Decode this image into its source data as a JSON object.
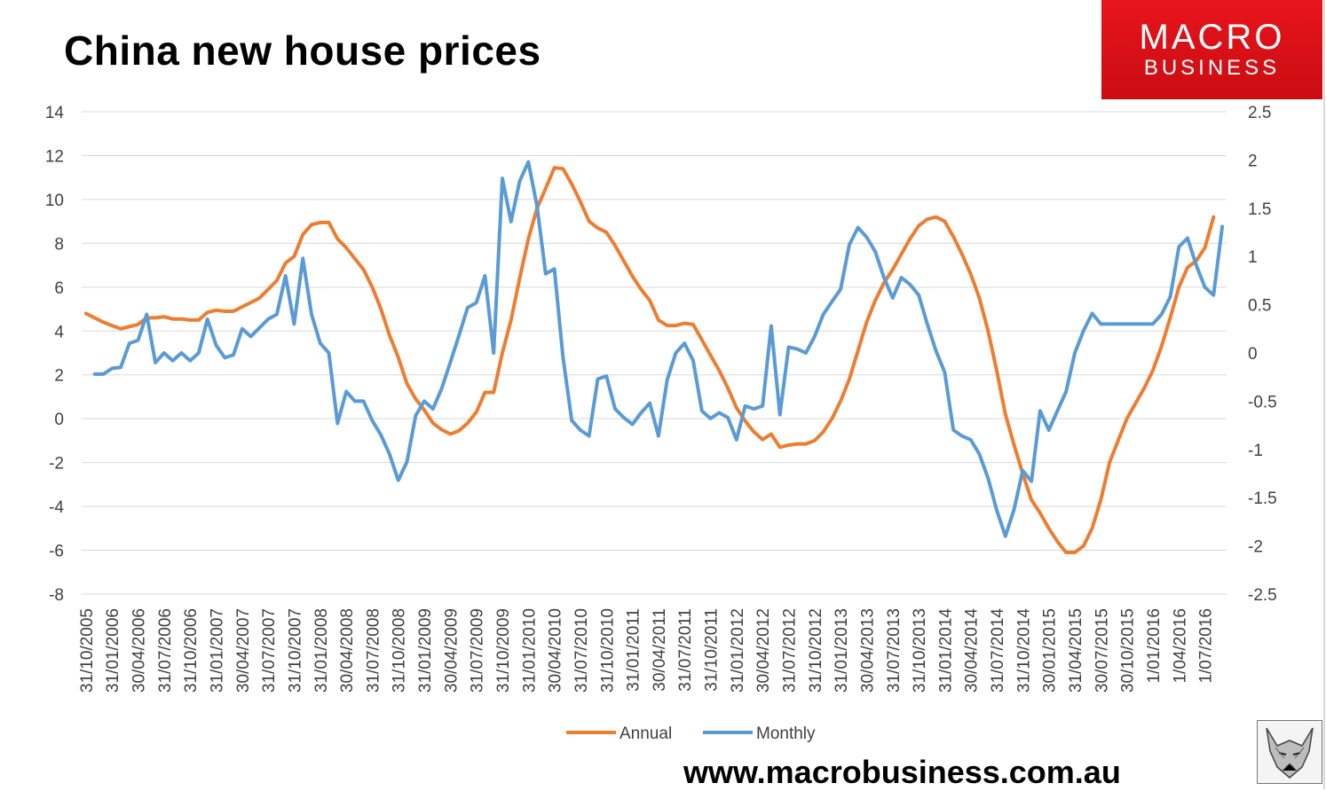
{
  "title": "China new house prices",
  "logo": {
    "line1": "MACRO",
    "line2": "BUSINESS"
  },
  "url": "www.macrobusiness.com.au",
  "colors": {
    "annual": "#ED7D31",
    "monthly": "#5B9BD5",
    "grid": "#d9d9d9",
    "brand": "#e8141c"
  },
  "icons": {
    "mascot": "wolf-icon"
  },
  "chart_data": {
    "type": "line",
    "title": "China new house prices",
    "x_tick_labels": [
      "31/10/2005",
      "31/01/2006",
      "30/04/2006",
      "31/07/2006",
      "31/10/2006",
      "31/01/2007",
      "30/04/2007",
      "31/07/2007",
      "31/10/2007",
      "31/01/2008",
      "30/04/2008",
      "31/07/2008",
      "31/10/2008",
      "31/01/2009",
      "30/04/2009",
      "31/07/2009",
      "31/10/2009",
      "31/01/2010",
      "30/04/2010",
      "31/07/2010",
      "31/10/2010",
      "31/01/2011",
      "30/04/2011",
      "31/07/2011",
      "31/10/2011",
      "31/01/2012",
      "30/04/2012",
      "31/07/2012",
      "31/10/2012",
      "31/01/2013",
      "30/04/2013",
      "31/07/2013",
      "31/10/2013",
      "31/01/2014",
      "30/04/2014",
      "31/07/2014",
      "31/10/2014",
      "30/01/2015",
      "31/04/2015",
      "30/07/2015",
      "30/10/2015",
      "1/01/2016",
      "1/04/2016",
      "1/07/2016"
    ],
    "y_left": {
      "min": -8,
      "max": 14,
      "ticks": [
        "14",
        "12",
        "10",
        "8",
        "6",
        "4",
        "2",
        "0",
        "-2",
        "-4",
        "-6",
        "-8"
      ]
    },
    "y_right": {
      "min": -2.5,
      "max": 2.5,
      "ticks": [
        "2.5",
        "2",
        "1.5",
        "1",
        "0.5",
        "0",
        "-0.5",
        "-1",
        "-1.5",
        "-2",
        "-2.5"
      ]
    },
    "grid": true,
    "legend_position": "bottom",
    "series": [
      {
        "name": "Annual",
        "axis": "left",
        "start_index": 0,
        "values": [
          4.8,
          4.6,
          4.4,
          4.25,
          4.1,
          4.2,
          4.3,
          4.6,
          4.6,
          4.65,
          4.55,
          4.55,
          4.5,
          4.5,
          4.85,
          4.95,
          4.9,
          4.9,
          5.1,
          5.3,
          5.5,
          5.9,
          6.3,
          7.1,
          7.4,
          8.4,
          8.85,
          8.95,
          8.95,
          8.2,
          7.8,
          7.3,
          6.8,
          6.0,
          5.0,
          3.8,
          2.8,
          1.6,
          0.9,
          0.4,
          -0.2,
          -0.5,
          -0.7,
          -0.55,
          -0.2,
          0.3,
          1.2,
          1.2,
          3.0,
          4.5,
          6.4,
          8.2,
          9.6,
          10.5,
          11.45,
          11.4,
          10.7,
          9.9,
          9.0,
          8.7,
          8.5,
          7.9,
          7.2,
          6.5,
          5.9,
          5.4,
          4.5,
          4.25,
          4.25,
          4.35,
          4.3,
          3.6,
          2.9,
          2.2,
          1.4,
          0.5,
          -0.1,
          -0.6,
          -0.95,
          -0.7,
          -1.3,
          -1.2,
          -1.15,
          -1.15,
          -1.0,
          -0.6,
          0.0,
          0.8,
          1.8,
          3.1,
          4.4,
          5.4,
          6.2,
          6.8,
          7.5,
          8.2,
          8.8,
          9.1,
          9.2,
          9.0,
          8.3,
          7.5,
          6.6,
          5.5,
          4.0,
          2.2,
          0.2,
          -1.2,
          -2.5,
          -3.7,
          -4.3,
          -5.0,
          -5.6,
          -6.1,
          -6.1,
          -5.8,
          -5.0,
          -3.7,
          -2.0,
          -1.0,
          0.0,
          0.7,
          1.4,
          2.2,
          3.3,
          4.6,
          6.0,
          6.9,
          7.2,
          7.8,
          9.2
        ]
      },
      {
        "name": "Monthly",
        "axis": "right",
        "start_index": 1,
        "values": [
          -0.22,
          -0.22,
          -0.16,
          -0.15,
          0.1,
          0.13,
          0.4,
          -0.1,
          0.0,
          -0.08,
          0.0,
          -0.08,
          0.0,
          0.35,
          0.08,
          -0.05,
          -0.02,
          0.25,
          0.17,
          0.26,
          0.35,
          0.4,
          0.8,
          0.3,
          0.98,
          0.4,
          0.1,
          0.0,
          -0.73,
          -0.4,
          -0.5,
          -0.5,
          -0.7,
          -0.85,
          -1.05,
          -1.32,
          -1.13,
          -0.65,
          -0.5,
          -0.58,
          -0.37,
          -0.1,
          0.18,
          0.47,
          0.52,
          0.8,
          0.0,
          1.81,
          1.36,
          1.78,
          1.98,
          1.52,
          0.82,
          0.87,
          -0.05,
          -0.7,
          -0.8,
          -0.86,
          -0.27,
          -0.24,
          -0.58,
          -0.67,
          -0.74,
          -0.62,
          -0.52,
          -0.86,
          -0.28,
          0.0,
          0.1,
          -0.08,
          -0.6,
          -0.68,
          -0.62,
          -0.67,
          -0.9,
          -0.55,
          -0.58,
          -0.55,
          0.28,
          -0.64,
          0.06,
          0.04,
          0.0,
          0.17,
          0.4,
          0.53,
          0.66,
          1.12,
          1.3,
          1.2,
          1.05,
          0.78,
          0.57,
          0.78,
          0.71,
          0.6,
          0.3,
          0.02,
          -0.2,
          -0.8,
          -0.86,
          -0.9,
          -1.05,
          -1.3,
          -1.63,
          -1.9,
          -1.62,
          -1.22,
          -1.33,
          -0.6,
          -0.8,
          -0.6,
          -0.4,
          0.0,
          0.23,
          0.41,
          0.3,
          0.3,
          0.3,
          0.3,
          0.3,
          0.3,
          0.3,
          0.4,
          0.58,
          1.1,
          1.19,
          0.91,
          0.68,
          0.6,
          1.31
        ]
      }
    ]
  }
}
